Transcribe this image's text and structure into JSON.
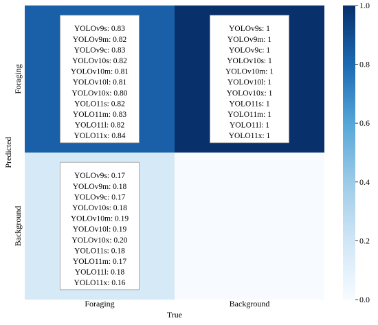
{
  "chart_data": {
    "type": "heatmap",
    "xlabel": "True",
    "ylabel": "Predicted",
    "x_categories": [
      "Foraging",
      "Background"
    ],
    "y_categories": [
      "Foraging",
      "Background"
    ],
    "values": [
      [
        0.83,
        1.0
      ],
      [
        0.17,
        0.0
      ]
    ],
    "colorbar": {
      "range": [
        0.0,
        1.0
      ],
      "ticks": [
        "0.0",
        "0.2",
        "0.4",
        "0.6",
        "0.8",
        "1.0"
      ]
    },
    "annotations": [
      [
        [
          "YOLOv9s: 0.83",
          "YOLOv9m: 0.82",
          "YOLOv9c: 0.83",
          "YOLOv10s: 0.82",
          "YOLOv10m: 0.81",
          "YOLOv10l: 0.81",
          "YOLOv10x: 0.80",
          "YOLO11s: 0.82",
          "YOLO11m: 0.83",
          "YOLO11l: 0.82",
          "YOLO11x: 0.84"
        ],
        [
          "YOLOv9s: 1",
          "YOLOv9m: 1",
          "YOLOv9c: 1",
          "YOLOv10s: 1",
          "YOLOv10m: 1",
          "YOLOv10l: 1",
          "YOLOv10x: 1",
          "YOLO11s: 1",
          "YOLO11m: 1",
          "YOLO11l: 1",
          "YOLO11x: 1"
        ]
      ],
      [
        [
          "YOLOv9s: 0.17",
          "YOLOv9m: 0.18",
          "YOLOv9c: 0.17",
          "YOLOv10s: 0.18",
          "YOLOv10m: 0.19",
          "YOLOv10l: 0.19",
          "YOLOv10x: 0.20",
          "YOLO11s: 0.18",
          "YOLO11m: 0.17",
          "YOLO11l: 0.18",
          "YOLO11x: 0.16"
        ],
        []
      ]
    ]
  }
}
